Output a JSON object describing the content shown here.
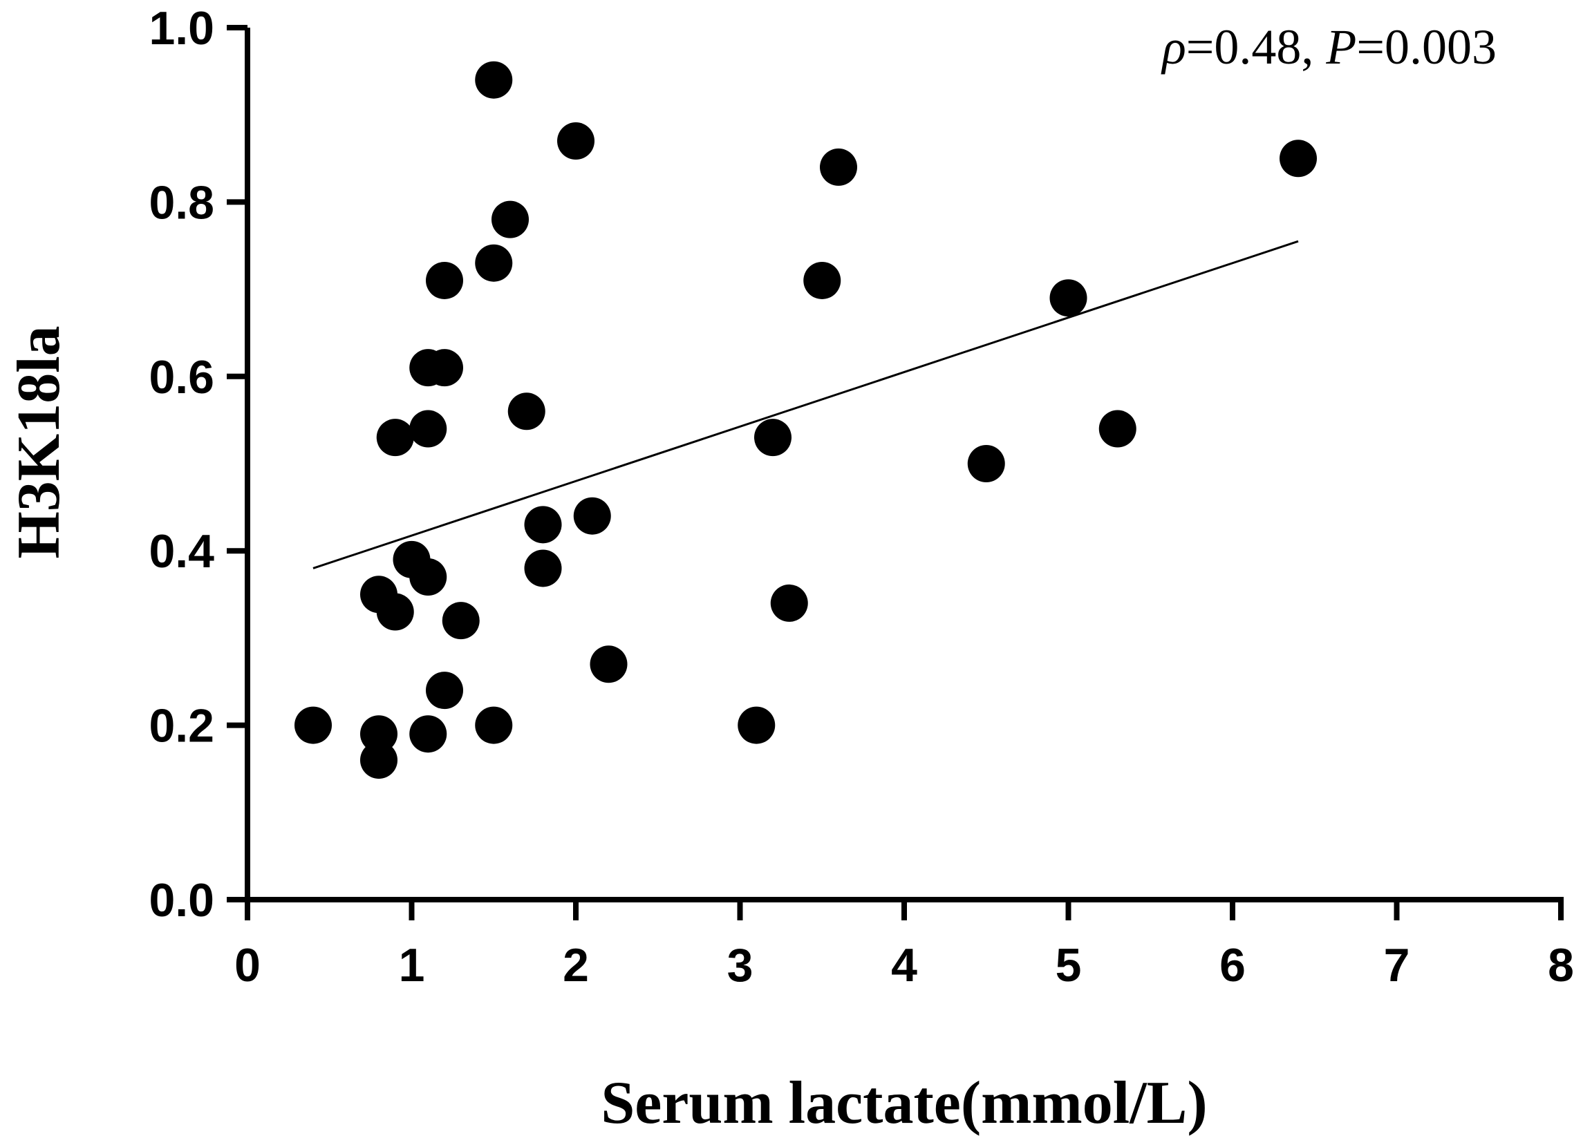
{
  "chart_data": {
    "type": "scatter",
    "xlabel": "Serum lactate(mmol/L)",
    "ylabel": "H3K18la",
    "xlim": [
      0,
      8
    ],
    "ylim": [
      0.0,
      1.0
    ],
    "x_ticks": [
      "0",
      "1",
      "2",
      "3",
      "4",
      "5",
      "6",
      "7",
      "8"
    ],
    "y_ticks": [
      "0.0",
      "0.2",
      "0.4",
      "0.6",
      "0.8",
      "1.0"
    ],
    "annotation": {
      "rho_symbol": "ρ",
      "rho_value": "=0.48, ",
      "p_symbol": "P",
      "p_value": "=0.003"
    },
    "grid": false,
    "colors": {
      "points": "#000000",
      "axes": "#000000",
      "fit_line": "#000000"
    },
    "points": [
      {
        "x": 0.4,
        "y": 0.2
      },
      {
        "x": 0.8,
        "y": 0.19
      },
      {
        "x": 0.8,
        "y": 0.16
      },
      {
        "x": 0.8,
        "y": 0.35
      },
      {
        "x": 0.9,
        "y": 0.33
      },
      {
        "x": 0.9,
        "y": 0.53
      },
      {
        "x": 1.0,
        "y": 0.39
      },
      {
        "x": 1.1,
        "y": 0.37
      },
      {
        "x": 1.1,
        "y": 0.19
      },
      {
        "x": 1.1,
        "y": 0.54
      },
      {
        "x": 1.1,
        "y": 0.61
      },
      {
        "x": 1.2,
        "y": 0.61
      },
      {
        "x": 1.2,
        "y": 0.71
      },
      {
        "x": 1.2,
        "y": 0.24
      },
      {
        "x": 1.3,
        "y": 0.32
      },
      {
        "x": 1.5,
        "y": 0.94
      },
      {
        "x": 1.5,
        "y": 0.73
      },
      {
        "x": 1.5,
        "y": 0.2
      },
      {
        "x": 1.6,
        "y": 0.78
      },
      {
        "x": 1.7,
        "y": 0.56
      },
      {
        "x": 1.8,
        "y": 0.43
      },
      {
        "x": 1.8,
        "y": 0.38
      },
      {
        "x": 2.0,
        "y": 0.87
      },
      {
        "x": 2.1,
        "y": 0.44
      },
      {
        "x": 2.2,
        "y": 0.27
      },
      {
        "x": 3.1,
        "y": 0.2
      },
      {
        "x": 3.2,
        "y": 0.53
      },
      {
        "x": 3.3,
        "y": 0.34
      },
      {
        "x": 3.5,
        "y": 0.71
      },
      {
        "x": 3.6,
        "y": 0.84
      },
      {
        "x": 4.5,
        "y": 0.5
      },
      {
        "x": 5.0,
        "y": 0.69
      },
      {
        "x": 5.3,
        "y": 0.54
      },
      {
        "x": 6.4,
        "y": 0.85
      }
    ],
    "fit_line": {
      "x": [
        0.4,
        6.4
      ],
      "y": [
        0.38,
        0.755
      ]
    }
  }
}
